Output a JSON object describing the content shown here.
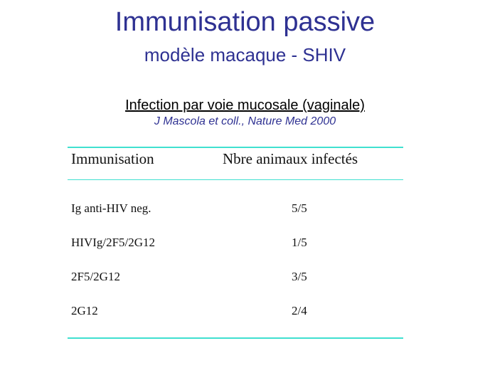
{
  "header": {
    "title": "Immunisation passive",
    "subtitle": "modèle macaque - SHIV"
  },
  "section": {
    "heading": "Infection par voie mucosale (vaginale)",
    "reference": "J Mascola et coll., Nature Med 2000"
  },
  "table": {
    "columns": [
      "Immunisation",
      "Nbre animaux infectés"
    ],
    "rows": [
      [
        "Ig anti-HIV neg.",
        "5/5"
      ],
      [
        "HIVIg/2F5/2G12",
        "1/5"
      ],
      [
        "2F5/2G12",
        "3/5"
      ],
      [
        "2G12",
        "2/4"
      ]
    ]
  }
}
